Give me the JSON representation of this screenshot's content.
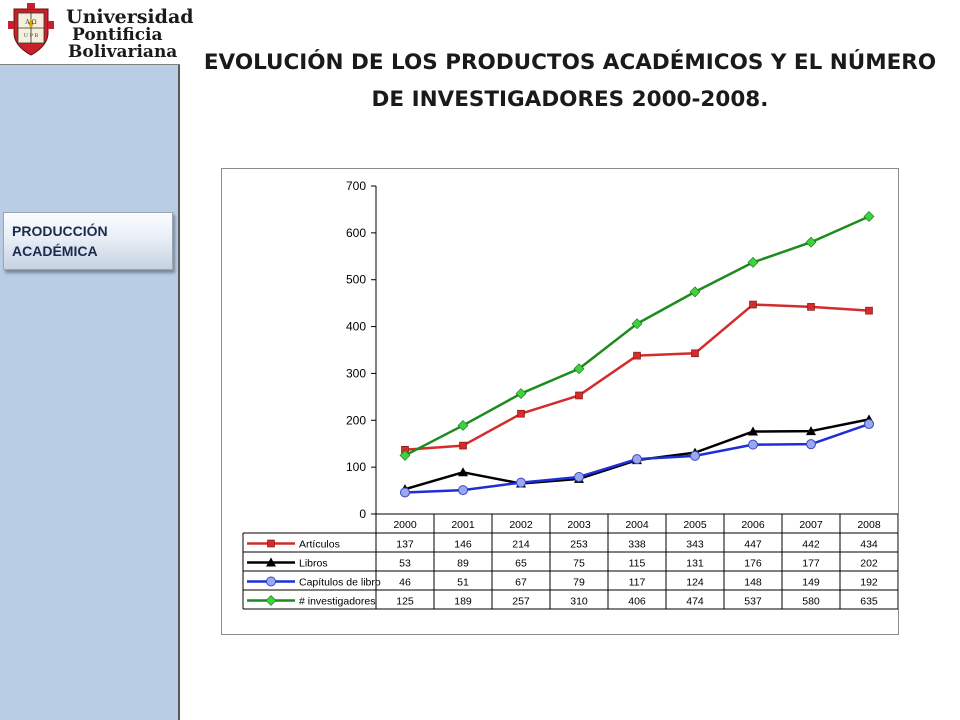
{
  "logo": {
    "line1": "Universidad",
    "line2": "Pontificia",
    "line3": "Bolivariana",
    "shield_top_letters": "A  Ω",
    "shield_bottom_letters": "U P B"
  },
  "sidebar": {
    "section_label": "PRODUCCIÓN ACADÉMICA"
  },
  "title": "EVOLUCIÓN DE LOS PRODUCTOS ACADÉMICOS Y EL NÚMERO DE INVESTIGADORES 2000-2008.",
  "colors": {
    "sidebar": "#b9cde5",
    "articulos": "#d42b2b",
    "libros": "#000000",
    "capitulos": "#1f2ed6",
    "investigadores": "#1c8c1c"
  },
  "chart_data": {
    "type": "line",
    "title": "",
    "xlabel": "",
    "ylabel": "",
    "ylim": [
      0,
      700
    ],
    "yticks": [
      0,
      100,
      200,
      300,
      400,
      500,
      600,
      700
    ],
    "grid": false,
    "legend": "data-table",
    "categories": [
      "2000",
      "2001",
      "2002",
      "2003",
      "2004",
      "2005",
      "2006",
      "2007",
      "2008"
    ],
    "series": [
      {
        "name": "Artículos",
        "marker": "square",
        "color": "#d42b2b",
        "values": [
          137,
          146,
          214,
          253,
          338,
          343,
          447,
          442,
          434
        ]
      },
      {
        "name": "Libros",
        "marker": "triangle",
        "color": "#000000",
        "values": [
          53,
          89,
          65,
          75,
          115,
          131,
          176,
          177,
          202
        ]
      },
      {
        "name": "Capítulos de libro",
        "marker": "circle",
        "color": "#1f2ed6",
        "values": [
          46,
          51,
          67,
          79,
          117,
          124,
          148,
          149,
          192
        ]
      },
      {
        "name": "# investigadores",
        "marker": "diamond",
        "color": "#1c8c1c",
        "values": [
          125,
          189,
          257,
          310,
          406,
          474,
          537,
          580,
          635
        ]
      }
    ]
  }
}
